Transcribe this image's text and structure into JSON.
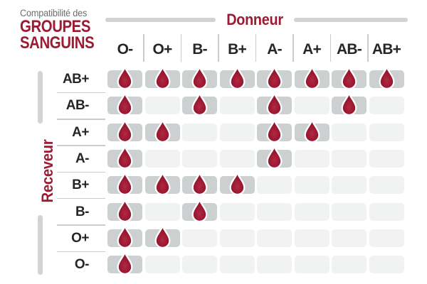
{
  "title": {
    "line1": "Compatibilité des",
    "line2": "GROUPES",
    "line3": "SANGUINS"
  },
  "axes": {
    "donor_label": "Donneur",
    "receiver_label": "Receveur"
  },
  "donors": [
    "O-",
    "O+",
    "B-",
    "B+",
    "A-",
    "A+",
    "AB-",
    "AB+"
  ],
  "receivers": [
    "AB+",
    "AB-",
    "A+",
    "A-",
    "B+",
    "B-",
    "O+",
    "O-"
  ],
  "icons": {
    "compatible_marker": "blood-drop-icon"
  },
  "colors": {
    "accent_red": "#9c1b33",
    "drop_red_center": "#b22845",
    "drop_red_edge": "#871022",
    "cell_filled": "#cdd0d1",
    "cell_empty": "#f1f2f2",
    "text_dark": "#262628",
    "muted_gray": "#6d6e71",
    "line_gray": "#d1d3d4"
  },
  "chart_data": {
    "type": "heatmap",
    "title": "Compatibilité des GROUPES SANGUINS",
    "xlabel": "Donneur",
    "ylabel": "Receveur",
    "x_categories": [
      "O-",
      "O+",
      "B-",
      "B+",
      "A-",
      "A+",
      "AB-",
      "AB+"
    ],
    "y_categories": [
      "AB+",
      "AB-",
      "A+",
      "A-",
      "B+",
      "B-",
      "O+",
      "O-"
    ],
    "value_meaning": "1 = compatible (blood drop shown on gray cell), 0 = not compatible (empty light cell)",
    "matrix": [
      [
        1,
        1,
        1,
        1,
        1,
        1,
        1,
        1
      ],
      [
        1,
        0,
        1,
        0,
        1,
        0,
        1,
        0
      ],
      [
        1,
        1,
        0,
        0,
        1,
        1,
        0,
        0
      ],
      [
        1,
        0,
        0,
        0,
        1,
        0,
        0,
        0
      ],
      [
        1,
        1,
        1,
        1,
        0,
        0,
        0,
        0
      ],
      [
        1,
        0,
        1,
        0,
        0,
        0,
        0,
        0
      ],
      [
        1,
        1,
        0,
        0,
        0,
        0,
        0,
        0
      ],
      [
        1,
        0,
        0,
        0,
        0,
        0,
        0,
        0
      ]
    ],
    "grid": false,
    "legend_position": "none"
  }
}
